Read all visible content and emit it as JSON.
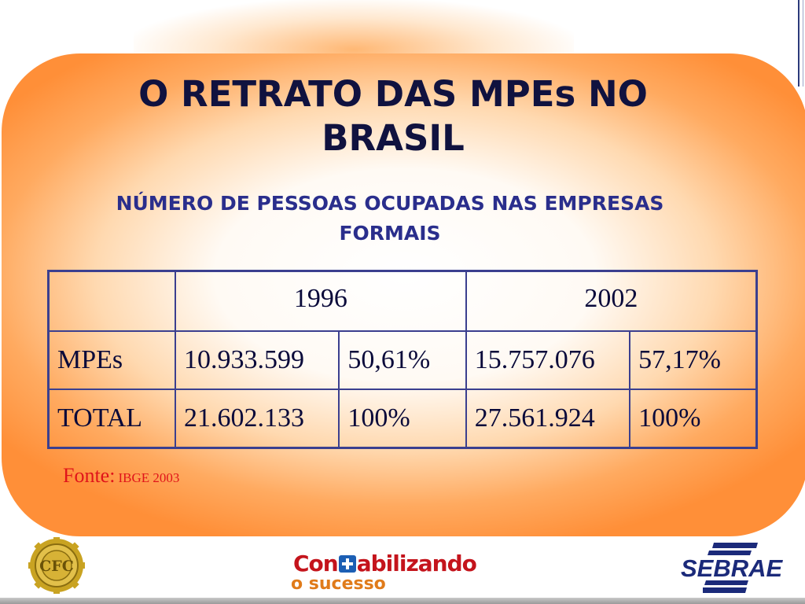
{
  "slide": {
    "title": "O RETRATO DAS MPEs NO BRASIL",
    "subtitle": "NÚMERO DE PESSOAS OCUPADAS NAS EMPRESAS FORMAIS"
  },
  "table": {
    "years": [
      "1996",
      "2002"
    ],
    "rows": [
      {
        "label": "MPEs",
        "cells": [
          "10.933.599",
          "50,61%",
          "15.757.076",
          "57,17%"
        ]
      },
      {
        "label": "TOTAL",
        "cells": [
          "21.602.133",
          "100%",
          "27.561.924",
          "100%"
        ]
      }
    ]
  },
  "source": {
    "label": "Fonte:",
    "value": "IBGE 2003"
  },
  "footer": {
    "cfc_logo_text": "CFC",
    "contabilizando_logo": {
      "part1": "Con",
      "part2": "abilizando",
      "tagline": "o sucesso"
    },
    "sebrae_logo_text": "SEBRAE"
  },
  "colors": {
    "panel_orange": "#ff8f38",
    "title": "#10123f",
    "subtitle": "#2a2e8c",
    "table_border": "#3b3f8f",
    "source_red": "#e0141a",
    "sebrae_blue": "#1b2a7a",
    "contabilizando_red": "#c4141c",
    "contabilizando_orange": "#e07b1a"
  }
}
